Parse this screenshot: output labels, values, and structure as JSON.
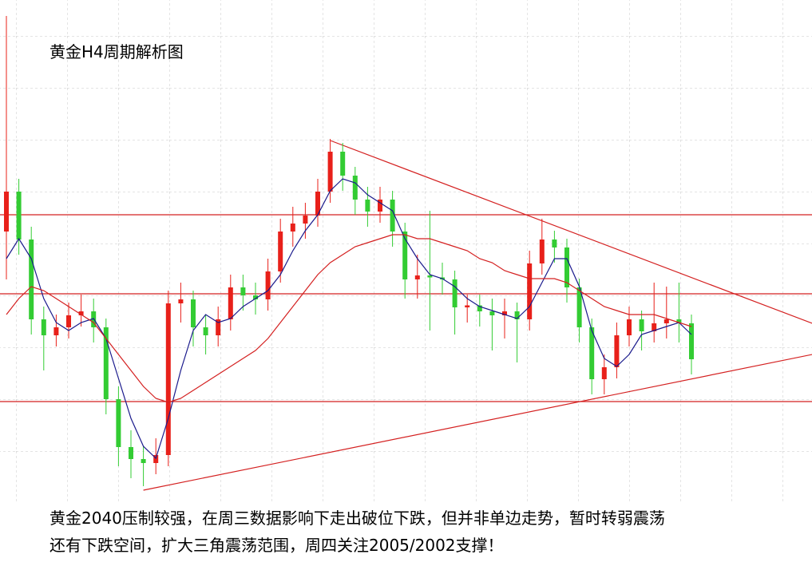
{
  "chart_data": {
    "type": "candlestick",
    "title": "黄金H4周期解析图",
    "annotations": [
      "黄金2040压制较强，在周三数据影响下走出破位下跌，但并非单边走势，暂时转弱震荡",
      "还有下跌空间，扩大三角震荡范围，周四关注2005/2002支撑！"
    ],
    "ylim": [
      1960,
      2104.8
    ],
    "up_color": "#e8201a",
    "down_color": "#33cc33",
    "open": [
      2046.8,
      2056.8,
      2044.8,
      2024.8,
      2020.8,
      2022.8,
      2025.8,
      2026.8,
      2022.8,
      2004.8,
      1992.8,
      1989.8,
      1988.8,
      1990.8,
      2028.8,
      2029.8,
      2022.8,
      2020.8,
      2024.8,
      2032.8,
      2030.8,
      2029.8,
      2036.8,
      2046.8,
      2048.8,
      2050.8,
      2056.8,
      2066.8,
      2060.8,
      2054.8,
      2051.8,
      2054.8,
      2046.8,
      2034.8,
      2035.8,
      2035.3,
      2034.8,
      2027.8,
      2028.3,
      2026.8,
      2025.8,
      2026.8,
      2024.8,
      2038.8,
      2044.8,
      2042.8,
      2032.8,
      2022.8,
      2009.8,
      2012.8,
      2020.8,
      2024.8,
      2021.8,
      2023.8,
      2024.8,
      2023.8
    ],
    "high": [
      2100.8,
      2060,
      2048,
      2028,
      2026,
      2029,
      2031,
      2030,
      2025,
      2008,
      1997,
      1993,
      1995,
      2032,
      2034,
      2032,
      2026,
      2028,
      2036,
      2036,
      2034,
      2040,
      2050,
      2053,
      2054,
      2060,
      2070,
      2069,
      2063,
      2058,
      2058,
      2057,
      2049,
      2041,
      2052,
      2039,
      2037,
      2031,
      2031,
      2030,
      2030,
      2029,
      2042,
      2050,
      2047,
      2045,
      2035,
      2025,
      2016,
      2024,
      2028,
      2027,
      2034,
      2033,
      2034,
      2026
    ],
    "low": [
      2034.8,
      2041,
      2021,
      2012,
      2018,
      2020,
      2023,
      2019,
      2001,
      1988,
      1985,
      1983,
      1986,
      1988,
      2024,
      2018,
      2016,
      2018,
      2022,
      2027,
      2026,
      2027,
      2034,
      2043,
      2045,
      2048,
      2054,
      2057,
      2051,
      2048,
      2049,
      2043,
      2030,
      2030,
      2022,
      2031,
      2021,
      2024,
      2023,
      2017,
      2020,
      2014,
      2022,
      2036,
      2039,
      2029,
      2019,
      2006,
      2006,
      2010,
      2018,
      2017,
      2019,
      2020,
      2019,
      2011
    ],
    "close": [
      2056.8,
      2044.8,
      2024.8,
      2020.8,
      2022.8,
      2025.8,
      2026.8,
      2022.8,
      2004.8,
      1992.8,
      1989.8,
      1988.8,
      1990.8,
      2028.8,
      2029.8,
      2022.8,
      2020.8,
      2024.8,
      2032.8,
      2030.8,
      2029.8,
      2036.8,
      2046.8,
      2048.8,
      2050.8,
      2056.8,
      2066.8,
      2060.8,
      2054.8,
      2051.8,
      2054.8,
      2046.8,
      2034.8,
      2035.8,
      2035.3,
      2034.8,
      2027.8,
      2028.3,
      2026.8,
      2025.8,
      2026.8,
      2024.8,
      2038.8,
      2044.8,
      2042.8,
      2032.8,
      2022.8,
      2009.8,
      2012.8,
      2020.8,
      2024.8,
      2021.8,
      2023.8,
      2024.8,
      2023.8,
      2014.8
    ],
    "moving_averages": [
      {
        "color": "#1a1a8c",
        "values": [
          2040,
          2045,
          2040,
          2030,
          2024,
          2022,
          2024,
          2025,
          2020,
          2010,
          2000,
          1993,
          1990,
          2000,
          2012,
          2022,
          2026,
          2024,
          2025,
          2028,
          2030,
          2032,
          2036,
          2042,
          2047,
          2051,
          2057,
          2060,
          2059,
          2056,
          2054,
          2052,
          2045,
          2040,
          2036,
          2035,
          2033,
          2030,
          2028,
          2027,
          2026,
          2025,
          2028,
          2034,
          2040,
          2040,
          2033,
          2022,
          2015,
          2013,
          2016,
          2021,
          2022,
          2023,
          2024,
          2021
        ]
      },
      {
        "color": "#d42020",
        "values": [
          2026,
          2030,
          2033,
          2032,
          2030,
          2028,
          2026,
          2024,
          2020,
          2016,
          2012,
          2008,
          2005,
          2004,
          2005,
          2007,
          2009,
          2011,
          2013,
          2015,
          2017,
          2020,
          2024,
          2028,
          2032,
          2036,
          2039,
          2041,
          2043,
          2044,
          2045,
          2046,
          2046,
          2045,
          2045,
          2044,
          2043,
          2042,
          2040,
          2039,
          2037,
          2036,
          2035,
          2035,
          2035,
          2034,
          2032,
          2030,
          2028,
          2027,
          2026,
          2026,
          2026,
          2025,
          2024,
          2023
        ]
      }
    ],
    "levels": [
      {
        "value": 2051,
        "color": "#d42020"
      },
      {
        "value": 2031.2,
        "color": "#d42020"
      },
      {
        "value": 2004.2,
        "color": "#d42020"
      }
    ],
    "trendlines": [
      {
        "x": [
          26,
          64.7
        ],
        "y": [
          2069.6,
          2023.8
        ],
        "color": "#d42020"
      },
      {
        "x": [
          11,
          64.7
        ],
        "y": [
          1982,
          2016
        ],
        "color": "#d42020"
      }
    ]
  }
}
